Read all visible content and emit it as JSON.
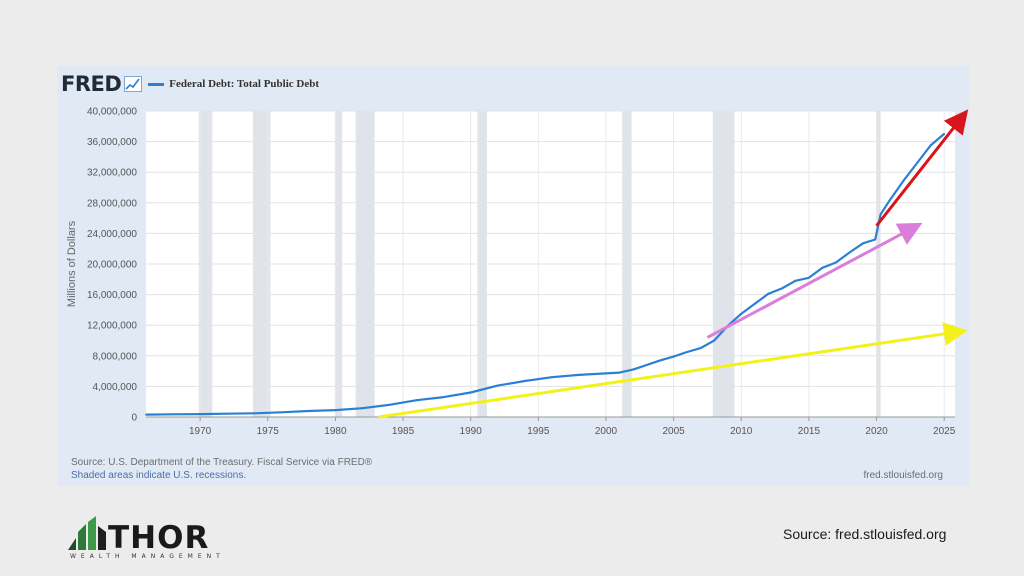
{
  "header": {
    "logo_text": "FRED",
    "legend_label": "Federal Debt: Total Public Debt"
  },
  "chart_data": {
    "type": "line",
    "title": "",
    "xlabel": "",
    "ylabel": "Millions of Dollars",
    "xlim": [
      1966,
      2025.8
    ],
    "ylim": [
      0,
      40000000
    ],
    "yticks": [
      0,
      4000000,
      8000000,
      12000000,
      16000000,
      20000000,
      24000000,
      28000000,
      32000000,
      36000000,
      40000000
    ],
    "ytick_labels": [
      "0",
      "4,000,000",
      "8,000,000",
      "12,000,000",
      "16,000,000",
      "20,000,000",
      "24,000,000",
      "28,000,000",
      "32,000,000",
      "36,000,000",
      "40,000,000"
    ],
    "xticks": [
      1970,
      1975,
      1980,
      1985,
      1990,
      1995,
      2000,
      2005,
      2010,
      2015,
      2020,
      2025
    ],
    "xtick_labels": [
      "1970",
      "1975",
      "1980",
      "1985",
      "1990",
      "1995",
      "2000",
      "2005",
      "2010",
      "2015",
      "2020",
      "2025"
    ],
    "grid": true,
    "recessions": [
      [
        1969.9,
        1970.9
      ],
      [
        1973.9,
        1975.2
      ],
      [
        1980.0,
        1980.5
      ],
      [
        1981.5,
        1982.9
      ],
      [
        1990.5,
        1991.2
      ],
      [
        2001.2,
        2001.9
      ],
      [
        2007.9,
        2009.5
      ],
      [
        2020.0,
        2020.3
      ]
    ],
    "series": [
      {
        "name": "Federal Debt: Total Public Debt",
        "color": "#2b7fd4",
        "x": [
          1966,
          1968,
          1970,
          1972,
          1974,
          1976,
          1978,
          1980,
          1982,
          1984,
          1986,
          1988,
          1990,
          1992,
          1994,
          1996,
          1998,
          2000,
          2001,
          2002,
          2003,
          2004,
          2005,
          2006,
          2007,
          2008,
          2009,
          2010,
          2011,
          2012,
          2013,
          2014,
          2015,
          2016,
          2017,
          2018,
          2019,
          2019.9,
          2020.3,
          2021,
          2022,
          2023,
          2024,
          2025
        ],
        "values": [
          320000,
          350000,
          380000,
          430000,
          480000,
          620000,
          780000,
          900000,
          1150000,
          1600000,
          2200000,
          2600000,
          3200000,
          4100000,
          4700000,
          5200000,
          5500000,
          5700000,
          5800000,
          6200000,
          6800000,
          7400000,
          7900000,
          8500000,
          9000000,
          10000000,
          11900000,
          13500000,
          14800000,
          16100000,
          16800000,
          17800000,
          18200000,
          19500000,
          20200000,
          21500000,
          22700000,
          23200000,
          26500000,
          28400000,
          30900000,
          33200000,
          35500000,
          37000000
        ]
      }
    ],
    "annotations": [
      {
        "type": "arrow",
        "color": "#f2f21a",
        "from": [
          1983.2,
          0
        ],
        "to": [
          2026.3,
          11200000
        ]
      },
      {
        "type": "arrow",
        "color": "#d97fdb",
        "from": [
          2007.5,
          10400000
        ],
        "to": [
          2023,
          25000000
        ]
      },
      {
        "type": "arrow",
        "color": "#d9141b",
        "from": [
          2020,
          25000000
        ],
        "to": [
          2026.5,
          39600000
        ]
      }
    ]
  },
  "footer": {
    "source": "Source: U.S. Department of the Treasury. Fiscal Service via FRED®",
    "recessions_note": "Shaded areas indicate U.S. recessions.",
    "site": "fred.stlouisfed.org"
  },
  "branding": {
    "company_name": "THOR",
    "tagline": "WEALTH MANAGEMENT",
    "source_caption": "Source: fred.stlouisfed.org"
  }
}
